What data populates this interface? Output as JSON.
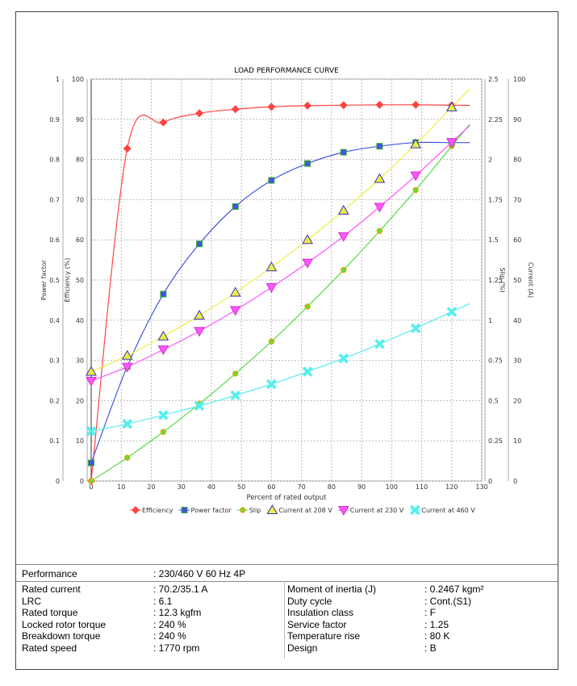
{
  "chart_data": {
    "type": "line",
    "title": "LOAD PERFORMANCE CURVE",
    "xlabel": "Percent of rated output",
    "xlim": [
      0,
      130
    ],
    "xticks": [
      0,
      10,
      20,
      30,
      40,
      50,
      60,
      70,
      80,
      90,
      100,
      110,
      120,
      130
    ],
    "x": [
      0,
      12,
      24,
      36,
      48,
      60,
      72,
      84,
      96,
      108,
      120
    ],
    "grid": true,
    "legend_placement": "bottom",
    "axes": {
      "power_factor": {
        "label": "Power factor",
        "range": [
          0,
          1
        ],
        "ticks": [
          "0",
          "0.1",
          "0.2",
          "0.3",
          "0.4",
          "0.5",
          "0.6",
          "0.7",
          "0.8",
          "0.9",
          "1"
        ],
        "side": "left-outer"
      },
      "efficiency": {
        "label": "Efficiency (%)",
        "range": [
          0,
          100
        ],
        "ticks": [
          "0",
          "10",
          "20",
          "30",
          "40",
          "50",
          "60",
          "70",
          "80",
          "90",
          "100"
        ],
        "side": "left"
      },
      "slip": {
        "label": "Slip (%)",
        "range": [
          0,
          2.5
        ],
        "ticks": [
          "0",
          "0.25",
          "0.5",
          "0.75",
          "1",
          "1.25",
          "1.5",
          "1.75",
          "2",
          "2.25",
          "2.5"
        ],
        "side": "right"
      },
      "current": {
        "label": "Current (A)",
        "range": [
          0,
          100
        ],
        "ticks": [
          "0",
          "10",
          "20",
          "30",
          "40",
          "50",
          "60",
          "70",
          "80",
          "90",
          "100"
        ],
        "side": "right-outer"
      }
    },
    "series": [
      {
        "name": "Efficiency",
        "axis": "efficiency",
        "color": "#ff4444",
        "marker": "diamond",
        "values": [
          0,
          82.7,
          89.2,
          91.5,
          92.5,
          93.1,
          93.4,
          93.5,
          93.6,
          93.6,
          93.5
        ]
      },
      {
        "name": "Power factor",
        "axis": "power_factor",
        "color": "#4455dd",
        "marker": "square",
        "values": [
          0.045,
          0.285,
          0.465,
          0.59,
          0.683,
          0.748,
          0.79,
          0.818,
          0.833,
          0.842,
          0.842
        ]
      },
      {
        "name": "Slip",
        "axis": "slip",
        "color": "#55dd44",
        "marker": "circle",
        "values": [
          0,
          0.145,
          0.305,
          0.48,
          0.668,
          0.868,
          1.085,
          1.313,
          1.555,
          1.81,
          2.083
        ]
      },
      {
        "name": "Current at 208 V",
        "axis": "current",
        "color": "#eeee44",
        "marker": "triangle-up",
        "values": [
          27.2,
          31.2,
          36,
          41.2,
          46.9,
          53.2,
          60,
          67.3,
          75.2,
          83.8,
          93
        ]
      },
      {
        "name": "Current at 230 V",
        "axis": "current",
        "color": "#ff55ff",
        "marker": "triangle-down",
        "values": [
          24.9,
          28.4,
          32.7,
          37.3,
          42.5,
          48.2,
          54.3,
          60.9,
          68.2,
          76,
          84.3
        ]
      },
      {
        "name": "Current at 460 V",
        "axis": "current",
        "color": "#55eeee",
        "marker": "x",
        "values": [
          12.4,
          14.2,
          16.4,
          18.7,
          21.3,
          24.1,
          27.2,
          30.5,
          34.1,
          38,
          42.1
        ]
      }
    ]
  },
  "table": {
    "performance": {
      "label": "Performance",
      "value": ": 230/460 V 60 Hz 4P"
    },
    "left": [
      {
        "label": "Rated current",
        "value": ": 70.2/35.1 A"
      },
      {
        "label": "LRC",
        "value": ": 6.1"
      },
      {
        "label": "Rated torque",
        "value": ": 12.3 kgfm"
      },
      {
        "label": "Locked rotor torque",
        "value": ": 240 %"
      },
      {
        "label": "Breakdown torque",
        "value": ": 240 %"
      },
      {
        "label": "Rated speed",
        "value": ": 1770 rpm"
      }
    ],
    "right": [
      {
        "label": "Moment of inertia (J)",
        "value": ": 0.2467 kgm²"
      },
      {
        "label": "Duty cycle",
        "value": ": Cont.(S1)"
      },
      {
        "label": "Insulation class",
        "value": ": F"
      },
      {
        "label": "Service factor",
        "value": ": 1.25"
      },
      {
        "label": "Temperature rise",
        "value": ": 80 K"
      },
      {
        "label": "Design",
        "value": ": B"
      }
    ]
  }
}
